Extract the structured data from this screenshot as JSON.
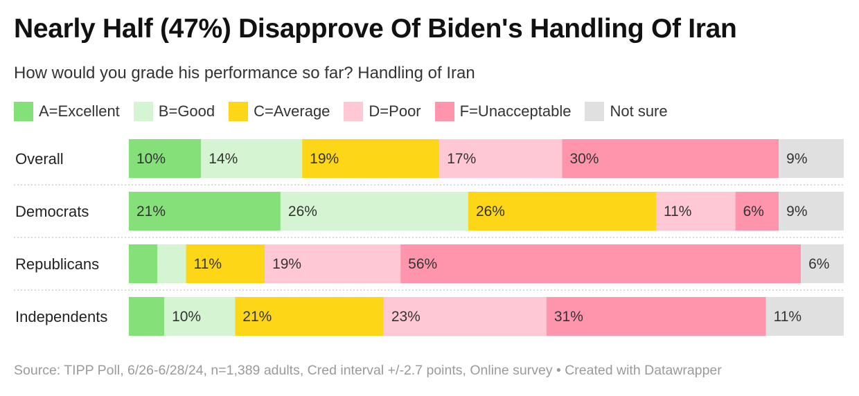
{
  "title": "Nearly Half (47%) Disapprove Of Biden's Handling Of Iran",
  "subtitle": "How would you grade his performance so far? Handling of Iran",
  "source": "Source: TIPP Poll, 6/26-6/28/24, n=1,389 adults, Cred interval +/-2.7 points, Online survey • Created with Datawrapper",
  "legend": [
    {
      "label": "A=Excellent",
      "color": "#85e07a"
    },
    {
      "label": "B=Good",
      "color": "#d4f4d2"
    },
    {
      "label": "C=Average",
      "color": "#fcd617"
    },
    {
      "label": "D=Poor",
      "color": "#ffc8d4"
    },
    {
      "label": "F=Unacceptable",
      "color": "#ff94ad"
    },
    {
      "label": "Not sure",
      "color": "#e0e0e0"
    }
  ],
  "chart_data": {
    "type": "bar",
    "orientation": "horizontal",
    "stacked": true,
    "categories": [
      "Overall",
      "Democrats",
      "Republicans",
      "Independents"
    ],
    "series": [
      {
        "name": "A=Excellent",
        "color": "#85e07a",
        "values": [
          10,
          21,
          4,
          5
        ],
        "labels": [
          "10%",
          "21%",
          "",
          ""
        ]
      },
      {
        "name": "B=Good",
        "color": "#d4f4d2",
        "values": [
          14,
          26,
          4,
          10
        ],
        "labels": [
          "14%",
          "26%",
          "",
          "10%"
        ]
      },
      {
        "name": "C=Average",
        "color": "#fcd617",
        "values": [
          19,
          26,
          11,
          21
        ],
        "labels": [
          "19%",
          "26%",
          "11%",
          "21%"
        ]
      },
      {
        "name": "D=Poor",
        "color": "#ffc8d4",
        "values": [
          17,
          11,
          19,
          23
        ],
        "labels": [
          "17%",
          "11%",
          "19%",
          "23%"
        ]
      },
      {
        "name": "F=Unacceptable",
        "color": "#ff94ad",
        "values": [
          30,
          6,
          56,
          31
        ],
        "labels": [
          "30%",
          "6%",
          "56%",
          "31%"
        ]
      },
      {
        "name": "Not sure",
        "color": "#e0e0e0",
        "values": [
          9,
          9,
          6,
          11
        ],
        "labels": [
          "9%",
          "9%",
          "6%",
          "11%"
        ]
      }
    ],
    "xlim": [
      0,
      100
    ]
  }
}
